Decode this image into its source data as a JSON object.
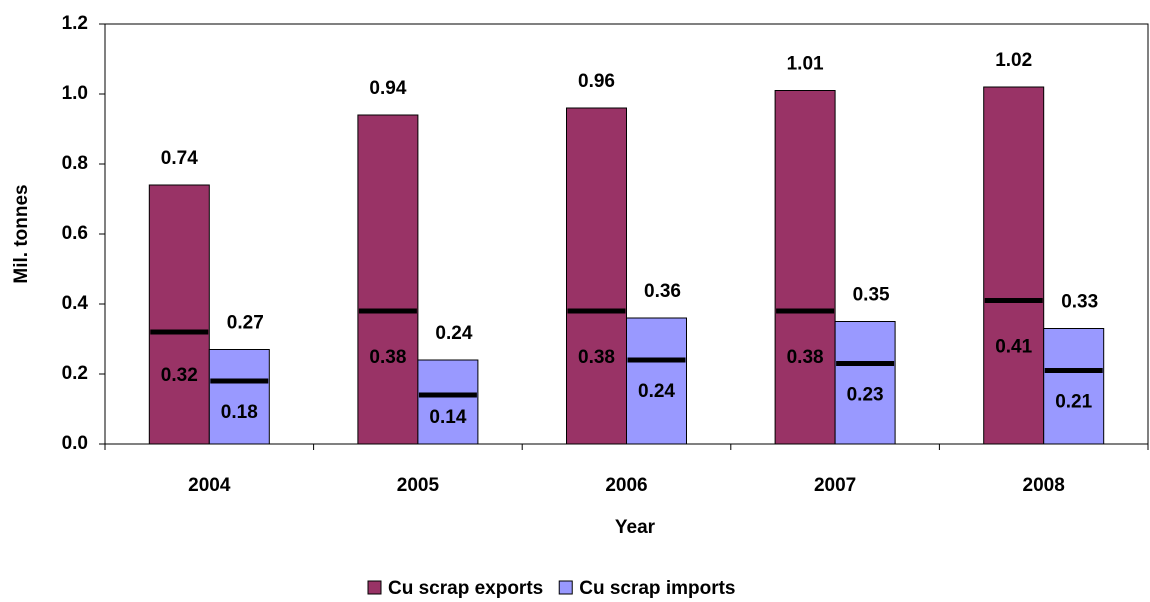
{
  "chart_data": {
    "type": "bar",
    "x_label": "Year",
    "y_label": "Mil. tonnes",
    "categories": [
      "2004",
      "2005",
      "2006",
      "2007",
      "2008"
    ],
    "series": [
      {
        "name": "Cu scrap exports",
        "color": "#993366",
        "values": [
          0.74,
          0.94,
          0.96,
          1.01,
          1.02
        ],
        "line_values": [
          0.32,
          0.38,
          0.38,
          0.38,
          0.41
        ]
      },
      {
        "name": "Cu scrap imports",
        "color": "#9999ff",
        "values": [
          0.27,
          0.24,
          0.36,
          0.35,
          0.33
        ],
        "line_values": [
          0.18,
          0.14,
          0.24,
          0.23,
          0.21
        ]
      }
    ],
    "line_color": "#000000",
    "ylim": [
      0,
      1.2
    ],
    "yticks": [
      {
        "value": 0,
        "label": "0.0"
      },
      0.2,
      0.4,
      0.6,
      0.8,
      {
        "value": 1,
        "label": "1.0"
      },
      1.2
    ],
    "grid": false
  }
}
